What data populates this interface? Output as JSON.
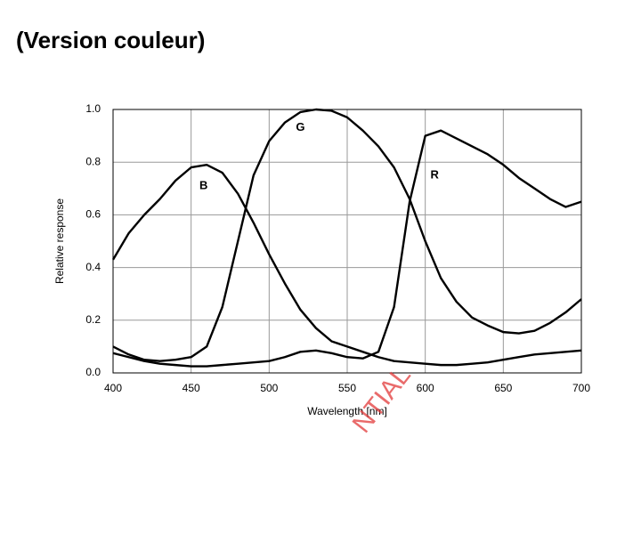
{
  "chart_data": {
    "type": "line",
    "title": "(Version couleur)",
    "x_label": "Wavelength [nm]",
    "y_label": "Relative response",
    "watermark": "NTIAL",
    "x": [
      400,
      410,
      420,
      430,
      440,
      450,
      460,
      470,
      480,
      490,
      500,
      510,
      520,
      530,
      540,
      550,
      560,
      570,
      580,
      590,
      600,
      610,
      620,
      630,
      640,
      650,
      660,
      670,
      680,
      690,
      700
    ],
    "series": [
      {
        "name": "B",
        "color": "#000000",
        "values": [
          0.43,
          0.53,
          0.6,
          0.66,
          0.73,
          0.78,
          0.79,
          0.76,
          0.68,
          0.57,
          0.45,
          0.34,
          0.24,
          0.17,
          0.12,
          0.1,
          0.08,
          0.06,
          0.045,
          0.04,
          0.035,
          0.03,
          0.03,
          0.035,
          0.04,
          0.05,
          0.06,
          0.07,
          0.075,
          0.08,
          0.085
        ]
      },
      {
        "name": "G",
        "color": "#000000",
        "values": [
          0.1,
          0.07,
          0.05,
          0.045,
          0.05,
          0.06,
          0.1,
          0.25,
          0.5,
          0.75,
          0.88,
          0.95,
          0.99,
          1.0,
          0.995,
          0.97,
          0.92,
          0.86,
          0.78,
          0.66,
          0.5,
          0.36,
          0.27,
          0.21,
          0.18,
          0.155,
          0.15,
          0.16,
          0.19,
          0.23,
          0.28
        ]
      },
      {
        "name": "R",
        "color": "#000000",
        "values": [
          0.075,
          0.06,
          0.045,
          0.035,
          0.03,
          0.025,
          0.025,
          0.03,
          0.035,
          0.04,
          0.045,
          0.06,
          0.08,
          0.085,
          0.075,
          0.06,
          0.055,
          0.08,
          0.25,
          0.65,
          0.9,
          0.92,
          0.89,
          0.86,
          0.83,
          0.79,
          0.74,
          0.7,
          0.66,
          0.63,
          0.65
        ]
      }
    ],
    "xlim": [
      400,
      700
    ],
    "xticks": [
      400,
      450,
      500,
      550,
      600,
      650,
      700
    ],
    "ylim": [
      0,
      1
    ],
    "yticks": [
      {
        "value": 0,
        "label": "0.0"
      },
      0.2,
      0.4,
      0.6,
      0.8,
      {
        "value": 1,
        "label": "1.0"
      }
    ],
    "grid": true
  }
}
